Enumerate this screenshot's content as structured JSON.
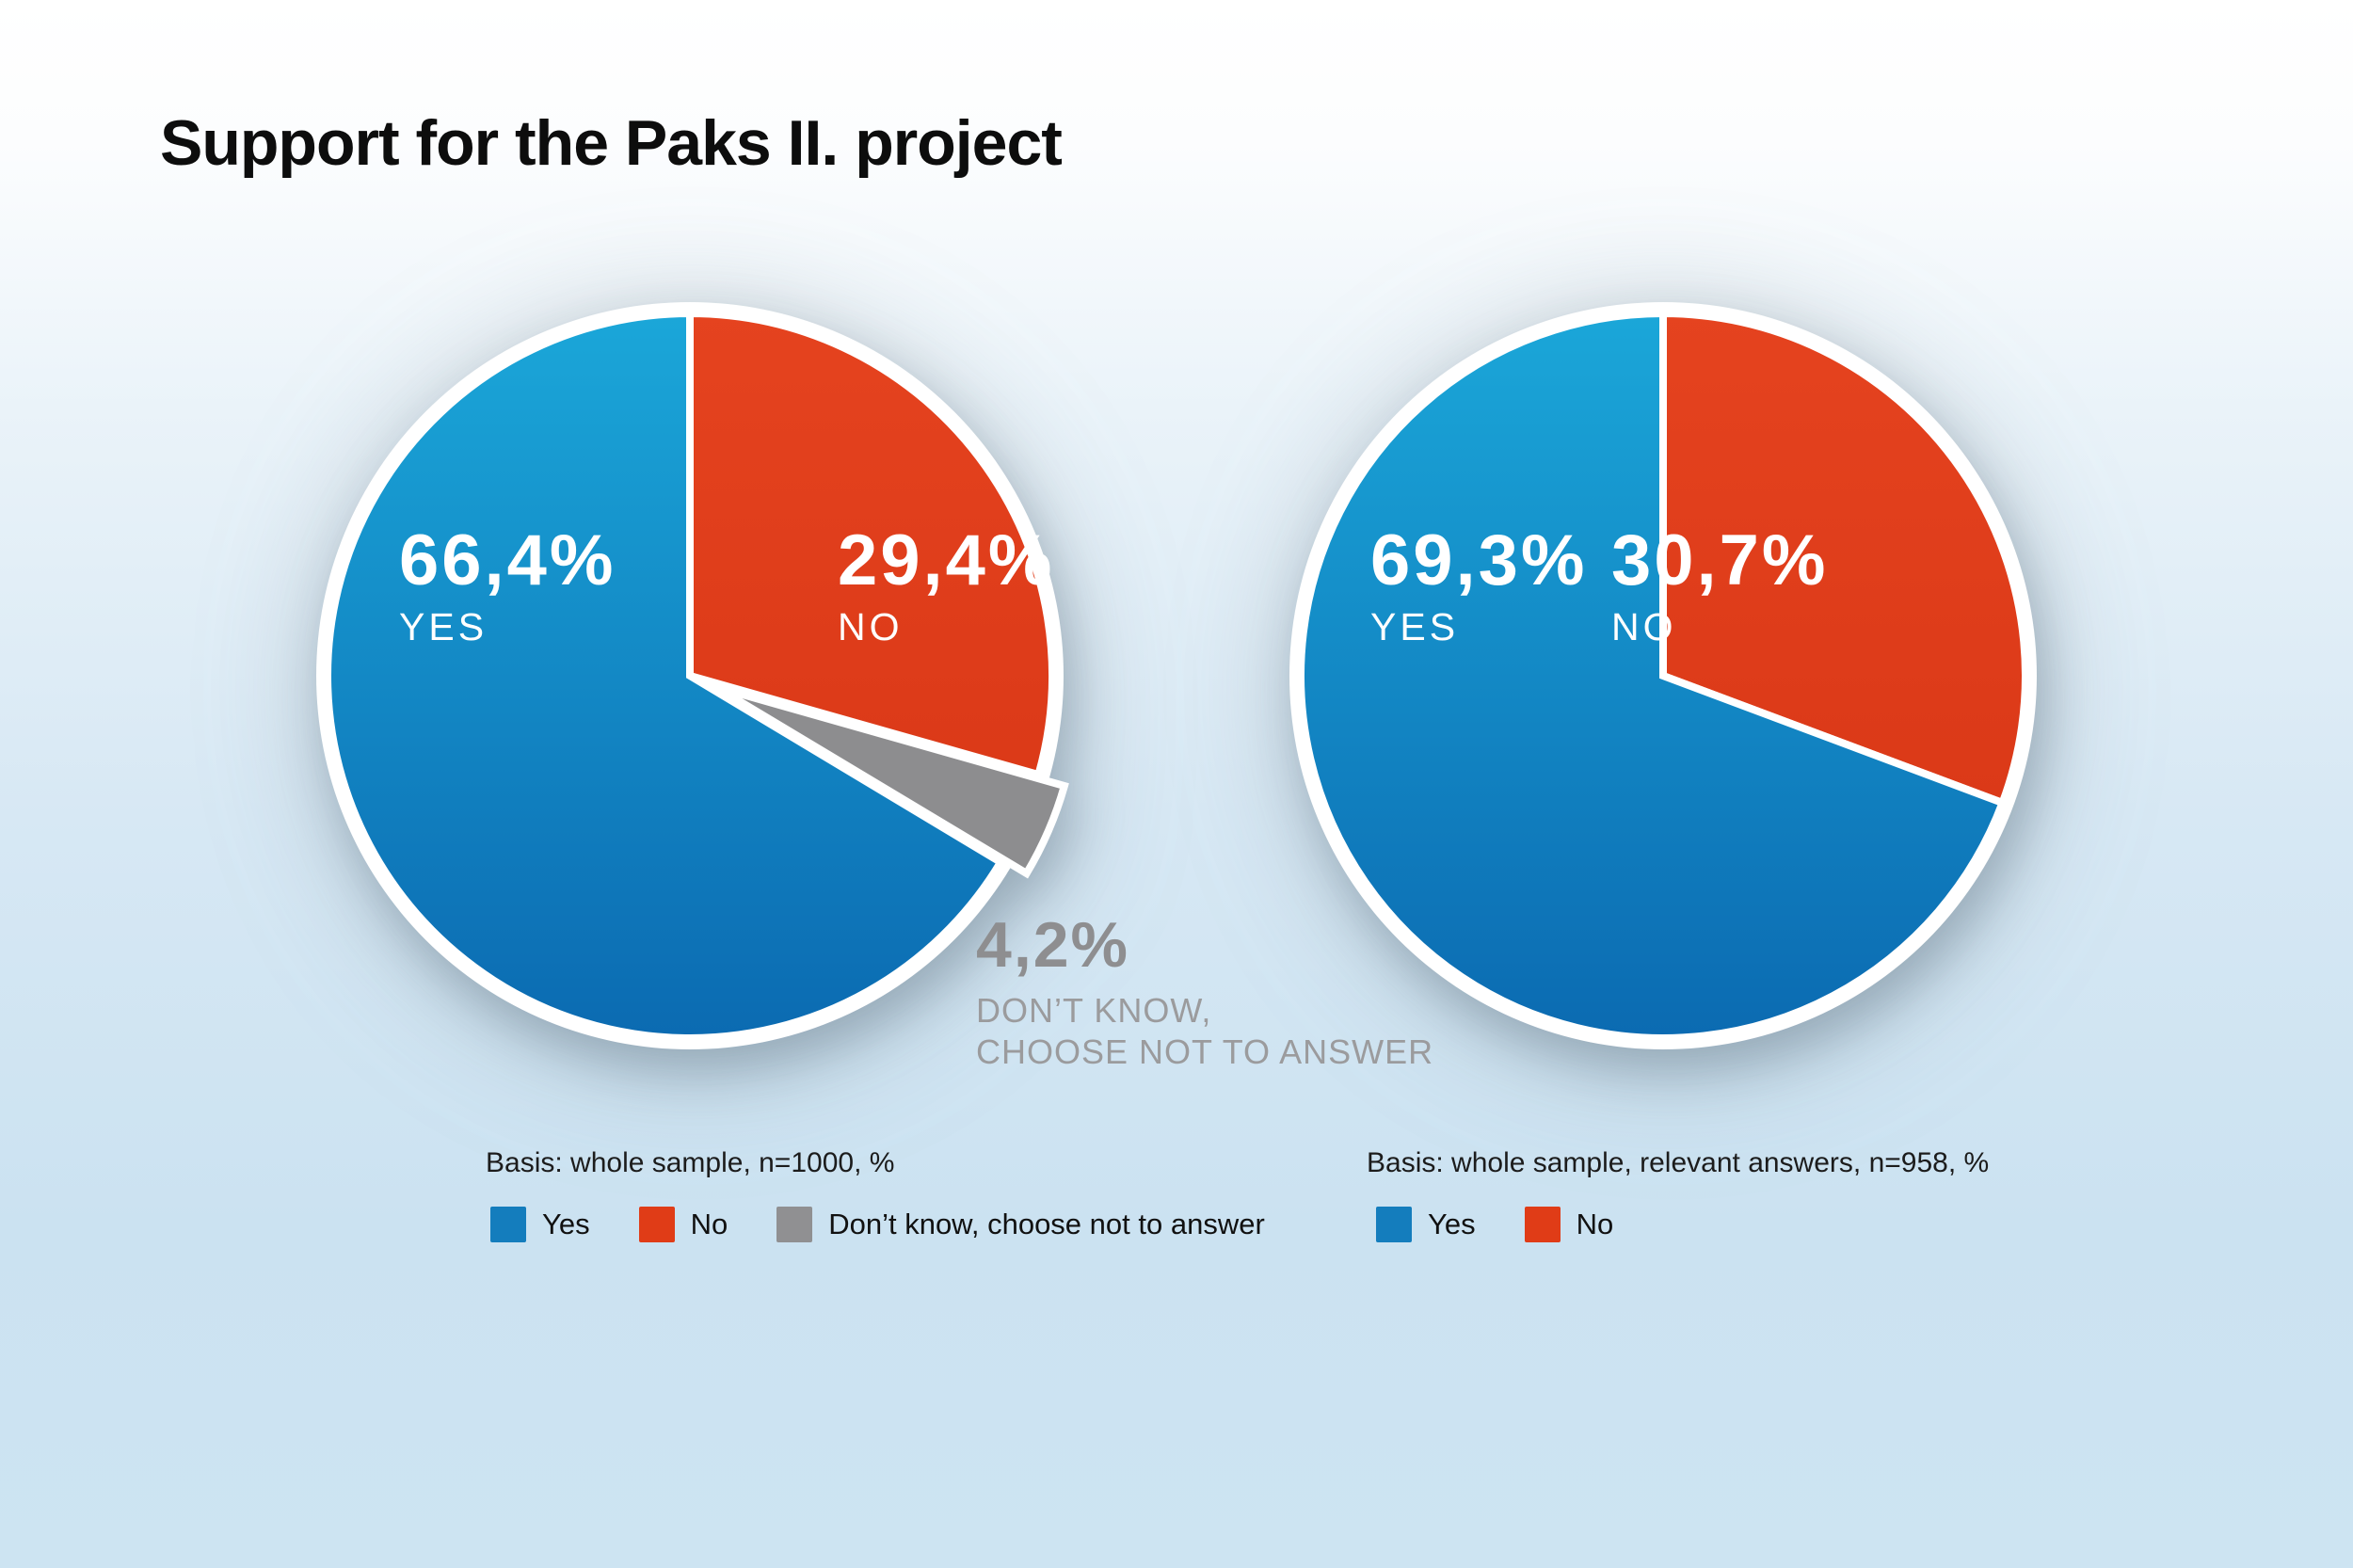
{
  "title": "Support for the Paks II. project",
  "colors": {
    "background_top": "#ffffff",
    "background_bottom": "#cde4f2",
    "yes_gradient_top": "#1ba7d9",
    "yes_gradient_bottom": "#0b6ab1",
    "no_gradient_top": "#e5431f",
    "no_gradient_bottom": "#d63414",
    "dont_know": "#8d8d8f",
    "legend_yes": "#147dbd",
    "legend_no": "#e03c17",
    "legend_dont_know": "#909092",
    "slice_stroke": "#ffffff",
    "title_text": "#0d0d0d",
    "muted_number": "#8e8e90",
    "muted_caption": "#9b9b9d"
  },
  "chart_data": [
    {
      "type": "pie",
      "start": "12 o'clock, clockwise",
      "basis": "Basis: whole sample, n=1000, %",
      "slices": [
        {
          "name": "No",
          "value": 29.4,
          "display": "29,4%",
          "word": "NO",
          "color": "no",
          "exploded": false
        },
        {
          "name": "Don’t know, choose not to answer",
          "value": 4.2,
          "display": "4,2%",
          "word_lines": [
            "DON’T KNOW,",
            "CHOOSE NOT TO ANSWER"
          ],
          "color": "dont_know",
          "exploded": true
        },
        {
          "name": "Yes",
          "value": 66.4,
          "display": "66,4%",
          "word": "YES",
          "color": "yes",
          "exploded": false
        }
      ],
      "legend": [
        {
          "label": "Yes",
          "color": "legend_yes"
        },
        {
          "label": "No",
          "color": "legend_no"
        },
        {
          "label": "Don’t know, choose not to answer",
          "color": "legend_dont_know"
        }
      ]
    },
    {
      "type": "pie",
      "start": "12 o'clock, clockwise",
      "basis": "Basis: whole sample, relevant answers, n=958, %",
      "slices": [
        {
          "name": "No",
          "value": 30.7,
          "display": "30,7%",
          "word": "NO",
          "color": "no",
          "exploded": false
        },
        {
          "name": "Yes",
          "value": 69.3,
          "display": "69,3%",
          "word": "YES",
          "color": "yes",
          "exploded": false
        }
      ],
      "legend": [
        {
          "label": "Yes",
          "color": "legend_yes"
        },
        {
          "label": "No",
          "color": "legend_no"
        }
      ]
    }
  ]
}
